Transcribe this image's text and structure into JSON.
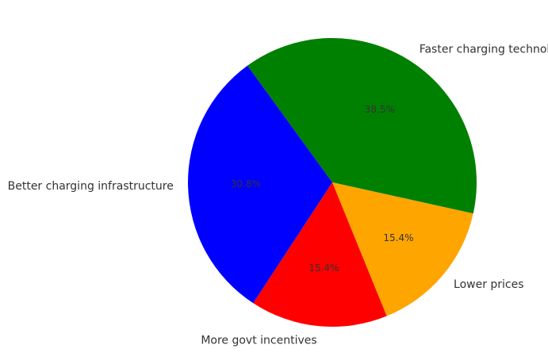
{
  "chart_data": {
    "type": "pie",
    "title": "",
    "categories": [
      "Faster charging technology",
      "Lower prices",
      "More govt incentives",
      "Better charging infrastructure"
    ],
    "values": [
      38.5,
      15.4,
      15.4,
      30.8
    ],
    "percent_labels": [
      "38.5%",
      "15.4%",
      "15.4%",
      "30.8%"
    ],
    "colors": [
      "#008000",
      "#FFA500",
      "#FF0000",
      "#0000FF"
    ],
    "start_angle_deg": 126,
    "direction": "clockwise"
  }
}
